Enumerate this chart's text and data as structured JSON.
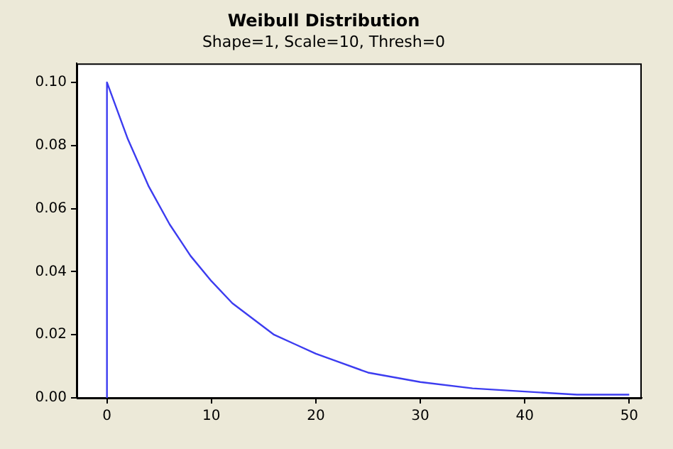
{
  "chart_data": {
    "type": "line",
    "title": "Weibull Distribution",
    "subtitle": "Shape=1, Scale=10, Thresh=0",
    "series": [
      {
        "color": "#3c3cf0",
        "x": [
          0,
          0,
          2,
          4,
          6,
          8,
          10,
          12,
          14,
          16,
          18,
          20,
          25,
          30,
          35,
          40,
          45,
          50
        ],
        "values": [
          0,
          0.1,
          0.082,
          0.067,
          0.055,
          0.045,
          0.037,
          0.03,
          0.025,
          0.02,
          0.017,
          0.014,
          0.008,
          0.005,
          0.003,
          0.002,
          0.001,
          0.001
        ]
      }
    ],
    "xlim": [
      -2.9,
      51.2
    ],
    "xticks": [
      0,
      10,
      20,
      30,
      40,
      50
    ],
    "ylim": [
      0,
      0.106
    ],
    "yticks": [
      {
        "value": 0,
        "label": "0.00"
      },
      {
        "value": 0.02,
        "label": "0.02"
      },
      {
        "value": 0.04,
        "label": "0.04"
      },
      {
        "value": 0.06,
        "label": "0.06"
      },
      {
        "value": 0.08,
        "label": "0.08"
      },
      {
        "value": 0.1,
        "label": "0.10"
      }
    ],
    "grid": false,
    "legend": false,
    "marker": "none",
    "line_style": "solid"
  }
}
